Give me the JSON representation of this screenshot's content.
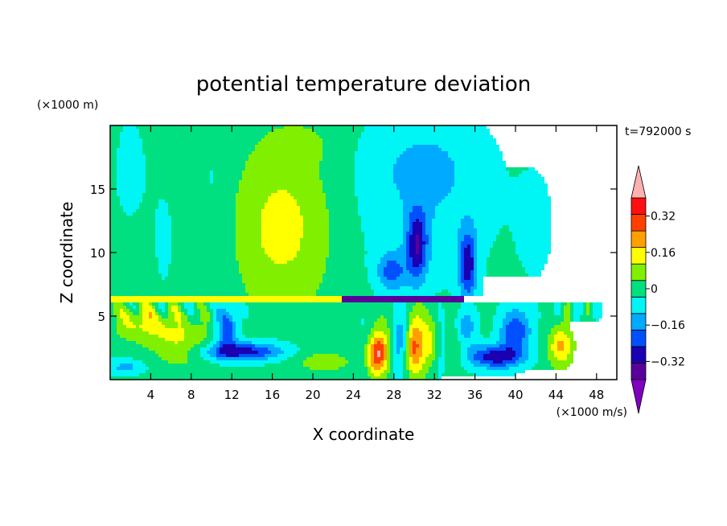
{
  "chart_data": {
    "type": "heatmap",
    "title": "potential temperature deviation",
    "xlabel": "X coordinate",
    "ylabel": "Z coordinate",
    "x_unit": "(×1000 m/s)",
    "y_unit": "(×1000 m)",
    "time_label": "t=792000 s",
    "xlim": [
      0,
      50
    ],
    "ylim": [
      0,
      20
    ],
    "x_ticks": [
      4,
      8,
      12,
      16,
      20,
      24,
      28,
      32,
      36,
      40,
      44,
      48
    ],
    "y_ticks": [
      5,
      10,
      15
    ],
    "colorbar": {
      "levels": [
        -0.4,
        -0.32,
        -0.24,
        -0.16,
        -0.08,
        0,
        0.08,
        0.16,
        0.24,
        0.32,
        0.4
      ],
      "tick_labels": [
        "−0.32",
        "−0.16",
        "0",
        "0.16",
        "0.32"
      ],
      "tick_values": [
        -0.32,
        -0.16,
        0,
        0.16,
        0.32
      ],
      "colors": [
        "#5a009a",
        "#1a00b0",
        "#0050ff",
        "#00aaff",
        "#00f5f5",
        "#00e080",
        "#80f000",
        "#ffff00",
        "#ffa000",
        "#ff4000",
        "#ff1010"
      ],
      "under_color": "#8000c0",
      "over_color": "#ffb0b0"
    }
  }
}
